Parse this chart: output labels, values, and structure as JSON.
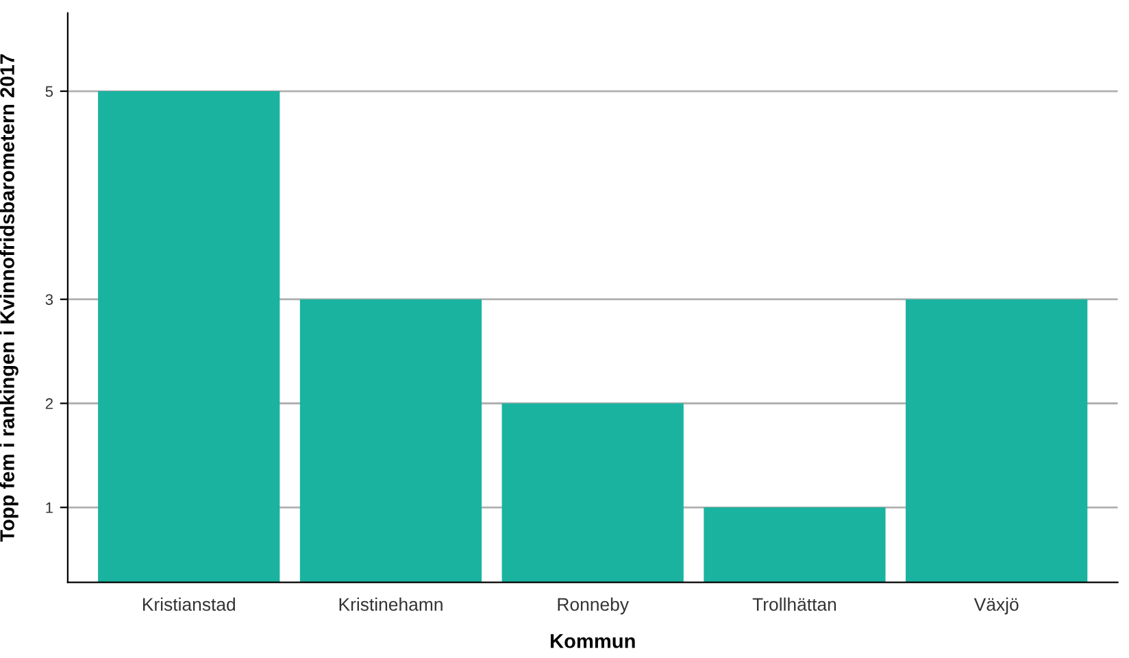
{
  "chart_data": {
    "type": "bar",
    "xlabel": "Kommun",
    "ylabel": "Topp fem i rankingen i Kvinnofridsbarometern 2017",
    "categories": [
      "Kristianstad",
      "Kristinehamn",
      "Ronneby",
      "Trollhättan",
      "Växjö"
    ],
    "values": [
      5,
      3,
      2,
      1,
      3
    ],
    "color": "#1ab3a0",
    "ylim": [
      0.28,
      5.75
    ],
    "yticks": [
      1,
      2,
      3,
      5
    ],
    "grid": "y"
  }
}
